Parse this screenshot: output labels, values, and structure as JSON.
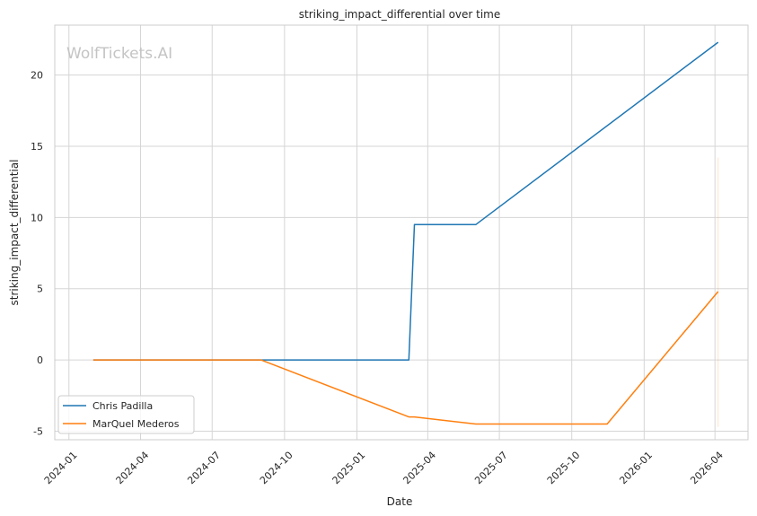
{
  "watermark": "WolfTickets.AI",
  "chart_data": {
    "type": "line",
    "title": "striking_impact_differential over time",
    "xlabel": "Date",
    "ylabel": "striking_impact_differential",
    "x_ticks": [
      "2024-01",
      "2024-04",
      "2024-07",
      "2024-10",
      "2025-01",
      "2025-04",
      "2025-07",
      "2025-10",
      "2026-01",
      "2026-04"
    ],
    "y_ticks": [
      -5,
      0,
      5,
      10,
      15,
      20
    ],
    "xlim": [
      "2023-12-14",
      "2026-05-13"
    ],
    "ylim": [
      -5.6,
      23.5
    ],
    "grid": true,
    "legend_position": "lower-left",
    "series": [
      {
        "name": "Chris Padilla",
        "color": "#1f77b4",
        "points": [
          {
            "x": "2024-02-01",
            "y": 0
          },
          {
            "x": "2024-09-01",
            "y": 0
          },
          {
            "x": "2025-03-08",
            "y": 0
          },
          {
            "x": "2025-03-15",
            "y": 9.5
          },
          {
            "x": "2025-06-01",
            "y": 9.5
          },
          {
            "x": "2026-04-05",
            "y": 22.3
          }
        ]
      },
      {
        "name": "MarQuel Mederos",
        "color": "#ff7f0e",
        "points": [
          {
            "x": "2024-02-01",
            "y": 0
          },
          {
            "x": "2024-09-01",
            "y": 0
          },
          {
            "x": "2025-03-08",
            "y": -4
          },
          {
            "x": "2025-03-15",
            "y": -4
          },
          {
            "x": "2025-06-01",
            "y": -4.5
          },
          {
            "x": "2025-11-15",
            "y": -4.5
          },
          {
            "x": "2026-04-05",
            "y": 4.8
          }
        ]
      }
    ],
    "error_band": {
      "x": "2026-04-05",
      "y_low": -4.7,
      "y_high": 14.2,
      "color": "#ff7f0e"
    }
  }
}
